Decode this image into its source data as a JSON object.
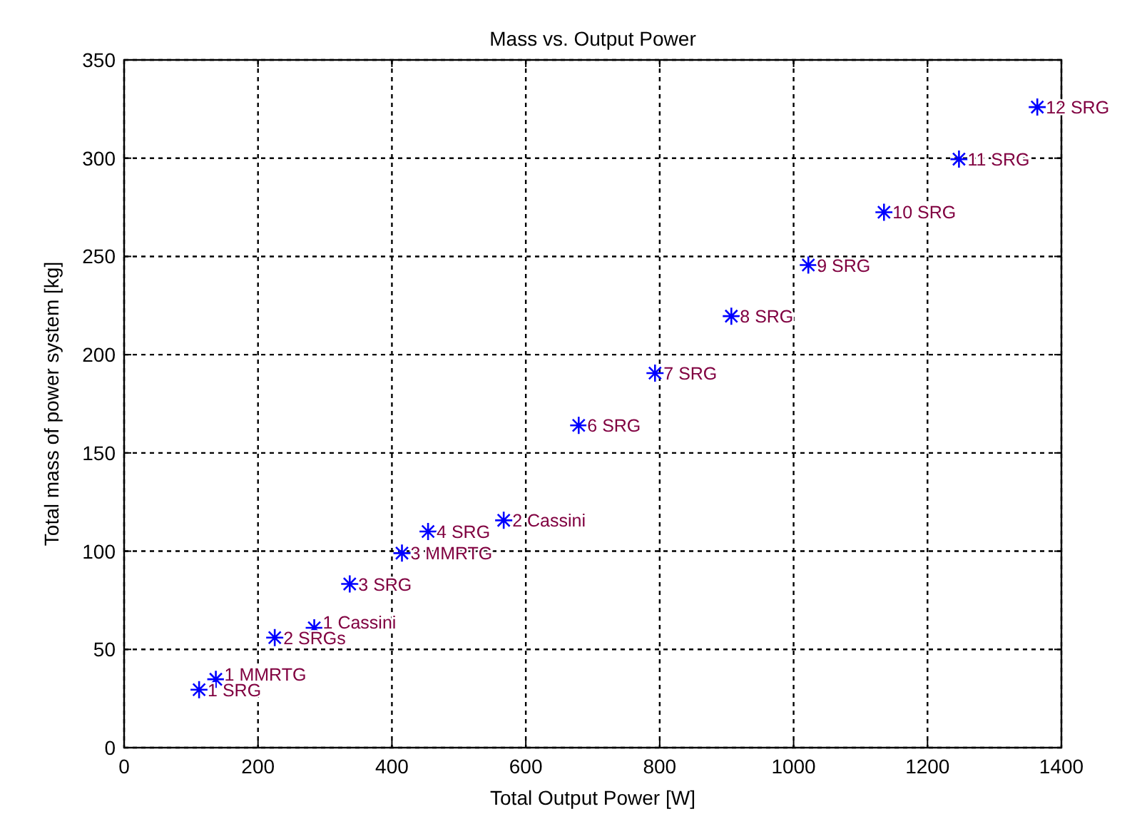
{
  "chart_data": {
    "type": "scatter",
    "title": "Mass vs. Output Power",
    "xlabel": "Total Output Power [W]",
    "ylabel": "Total mass of power system [kg]",
    "xlim": [
      0,
      1400
    ],
    "xticks": [
      0,
      200,
      400,
      600,
      800,
      1000,
      1200,
      1400
    ],
    "ylim": [
      0,
      350
    ],
    "yticks": [
      0,
      50,
      100,
      150,
      200,
      250,
      300,
      350
    ],
    "grid": true,
    "line_style": "dashed",
    "marker": "cross",
    "series": [
      {
        "color": "#0000ff",
        "x": [
          112,
          225,
          337,
          454,
          679,
          793,
          907,
          1022,
          1135,
          1247,
          1364,
          137,
          415,
          284,
          567
        ],
        "values": [
          29.5,
          56,
          83.3,
          110,
          164,
          190.6,
          219.6,
          245.6,
          272.5,
          299.5,
          326,
          34.8,
          99,
          61,
          115.7
        ]
      }
    ],
    "annotations": [
      {
        "text": "1 SRG",
        "x": 112,
        "y": 29.5
      },
      {
        "text": "2 SRGs",
        "x": 225,
        "y": 56
      },
      {
        "text": "3 SRG",
        "x": 337,
        "y": 83.3
      },
      {
        "text": "4 SRG",
        "x": 454,
        "y": 110
      },
      {
        "text": "6 SRG",
        "x": 679,
        "y": 164
      },
      {
        "text": "7 SRG",
        "x": 793,
        "y": 190.6
      },
      {
        "text": "8 SRG",
        "x": 907,
        "y": 219.6
      },
      {
        "text": "9 SRG",
        "x": 1022,
        "y": 245.6
      },
      {
        "text": "10 SRG",
        "x": 1135,
        "y": 272.5
      },
      {
        "text": "11 SRG",
        "x": 1247,
        "y": 299.5
      },
      {
        "text": "12 SRG",
        "x": 1364,
        "y": 326
      },
      {
        "text": "1 MMRTG",
        "x": 137,
        "y": 34.8
      },
      {
        "text": "3 MMRTG",
        "x": 415,
        "y": 99
      },
      {
        "text": "1 Cassini",
        "x": 284,
        "y": 61
      },
      {
        "text": "2 Cassini",
        "x": 567,
        "y": 115.7
      }
    ]
  }
}
